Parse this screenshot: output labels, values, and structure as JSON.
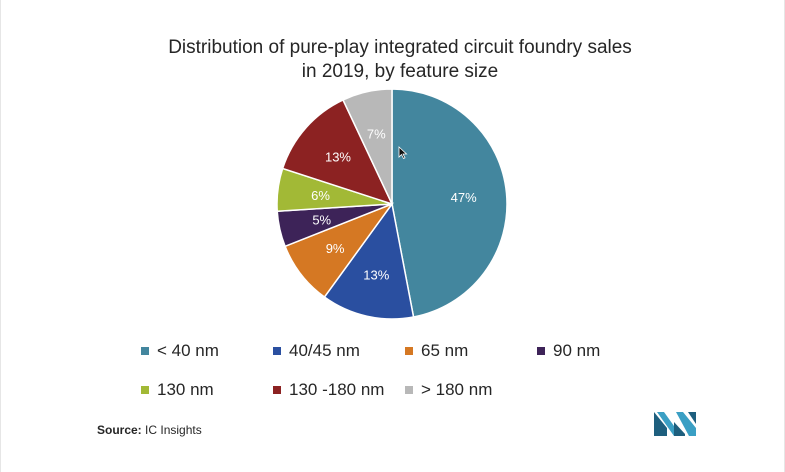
{
  "chart_data": {
    "type": "pie",
    "title_line1": "Distribution of pure-play integrated circuit foundry sales",
    "title_line2": "in 2019, by feature size",
    "categories": [
      "< 40 nm",
      "40/45 nm",
      "65 nm",
      "90 nm",
      "130 nm",
      "130 -180 nm",
      "> 180 nm"
    ],
    "values": [
      47,
      13,
      9,
      5,
      6,
      13,
      7
    ],
    "labels": [
      "47%",
      "13%",
      "9%",
      "5%",
      "6%",
      "13%",
      "7%"
    ],
    "colors": [
      "#43869e",
      "#2a4fa0",
      "#d57823",
      "#3d2358",
      "#a2b936",
      "#8c2222",
      "#b8b8b8"
    ],
    "legend_position": "bottom"
  },
  "source": {
    "label": "Source:",
    "text": "IC Insights"
  },
  "logo": {
    "icon": "mordor-intelligence-logo",
    "colors": [
      "#1e5f7e",
      "#3a9fc4"
    ]
  }
}
